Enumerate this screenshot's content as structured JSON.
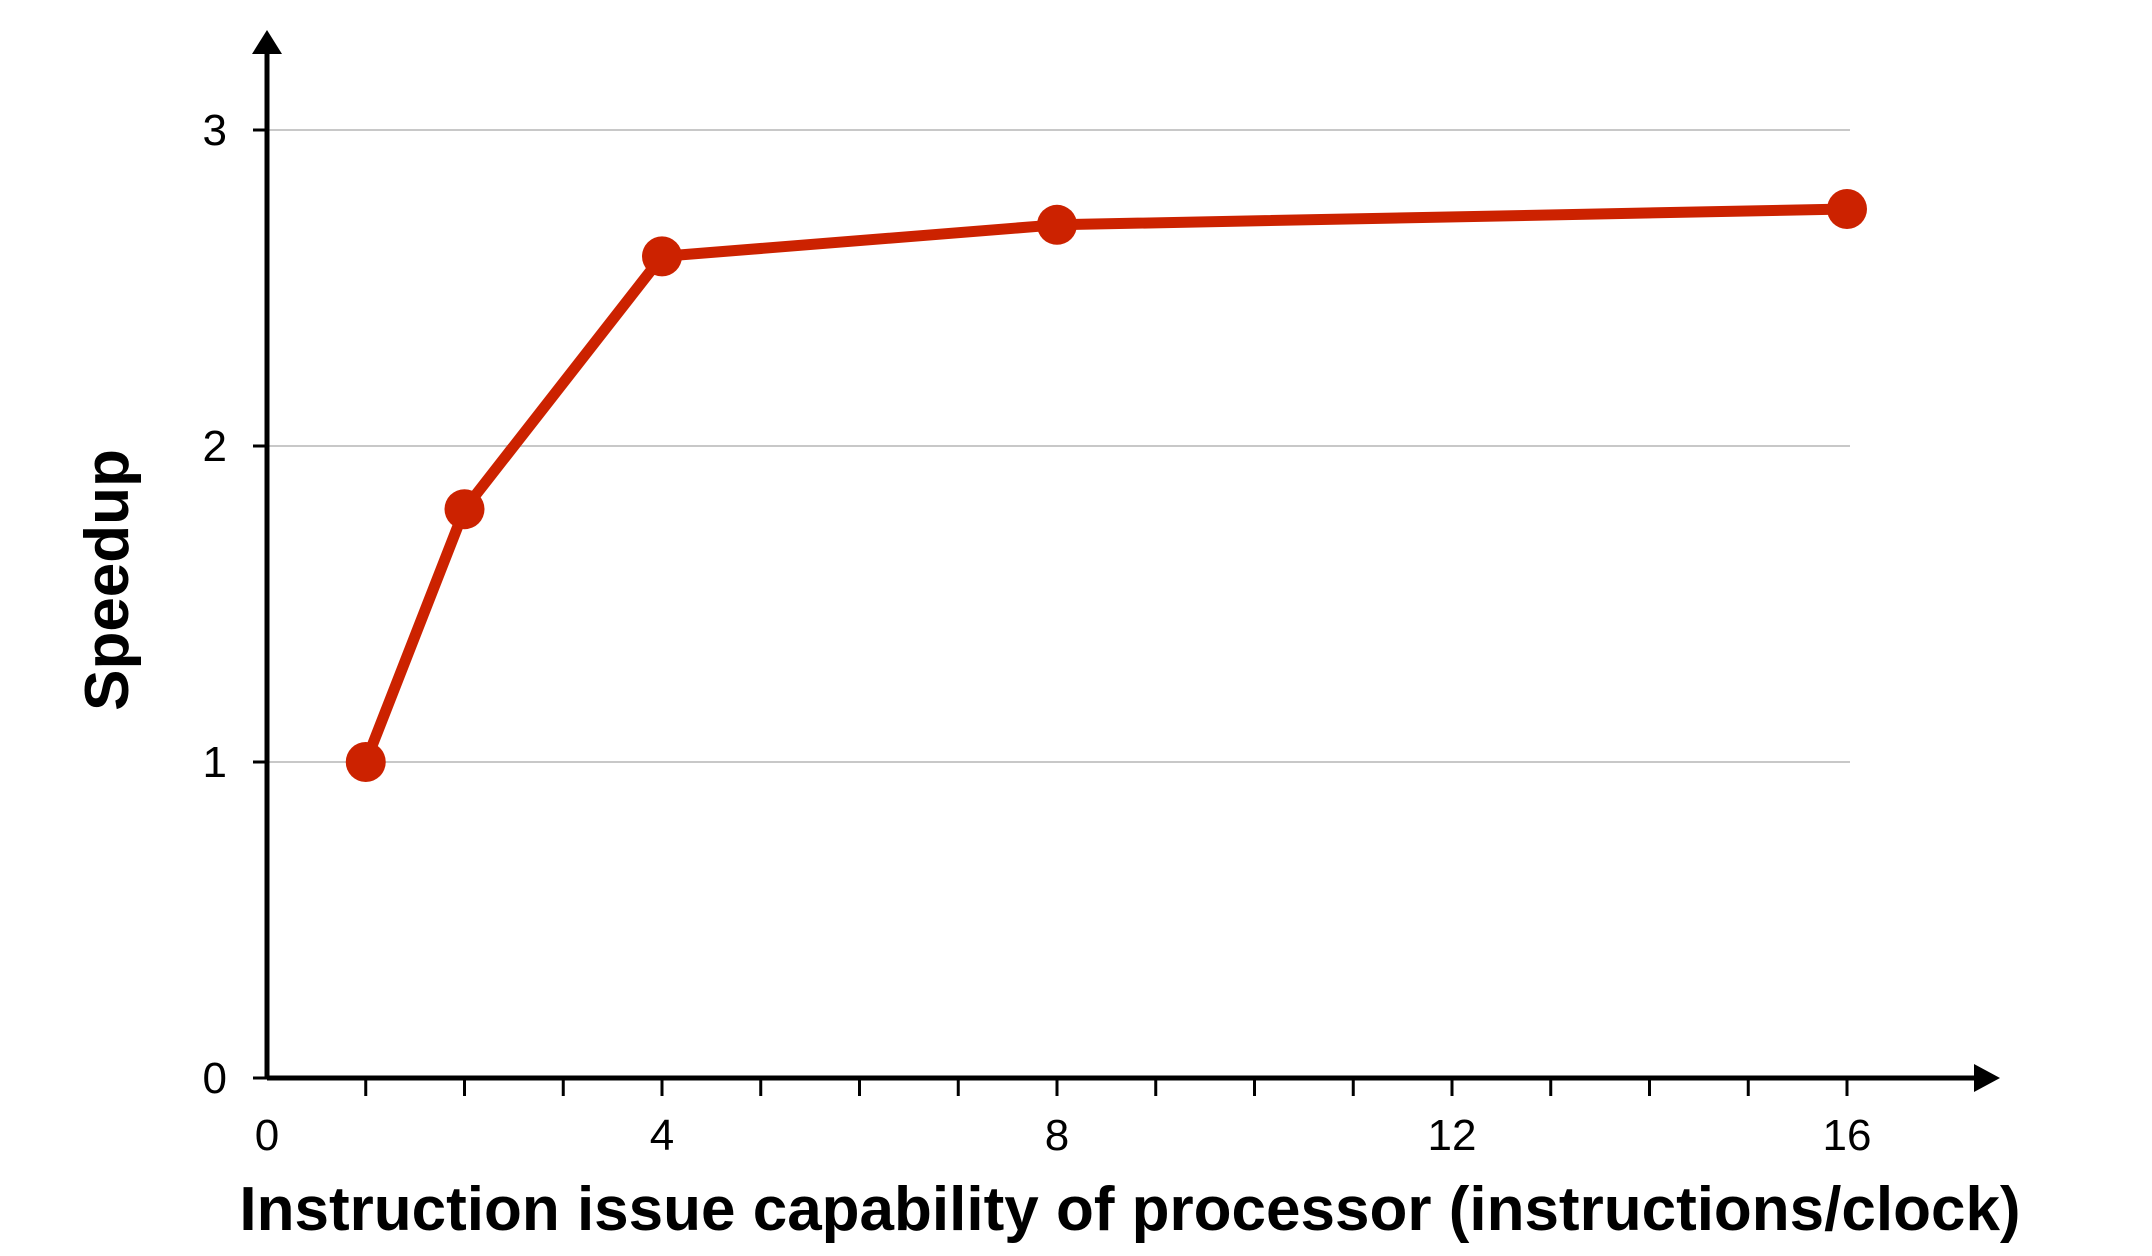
{
  "chart_data": {
    "type": "line",
    "title": "",
    "xlabel": "Instruction issue capability of processor (instructions/clock)",
    "ylabel": "Speedup",
    "xlim": [
      0,
      18
    ],
    "ylim": [
      0,
      3.3
    ],
    "x_ticks": [
      0,
      4,
      8,
      12,
      16
    ],
    "x_minor_ticks": [
      1,
      2,
      3,
      4,
      5,
      6,
      7,
      8,
      9,
      10,
      11,
      12,
      13,
      14,
      15,
      16
    ],
    "y_ticks": [
      0,
      1,
      2,
      3
    ],
    "grid": "horizontal",
    "line_color": "#cc2200",
    "series": [
      {
        "x": [
          1,
          2,
          4,
          8,
          16
        ],
        "values": [
          1.0,
          1.8,
          2.6,
          2.7,
          2.75
        ]
      }
    ]
  }
}
